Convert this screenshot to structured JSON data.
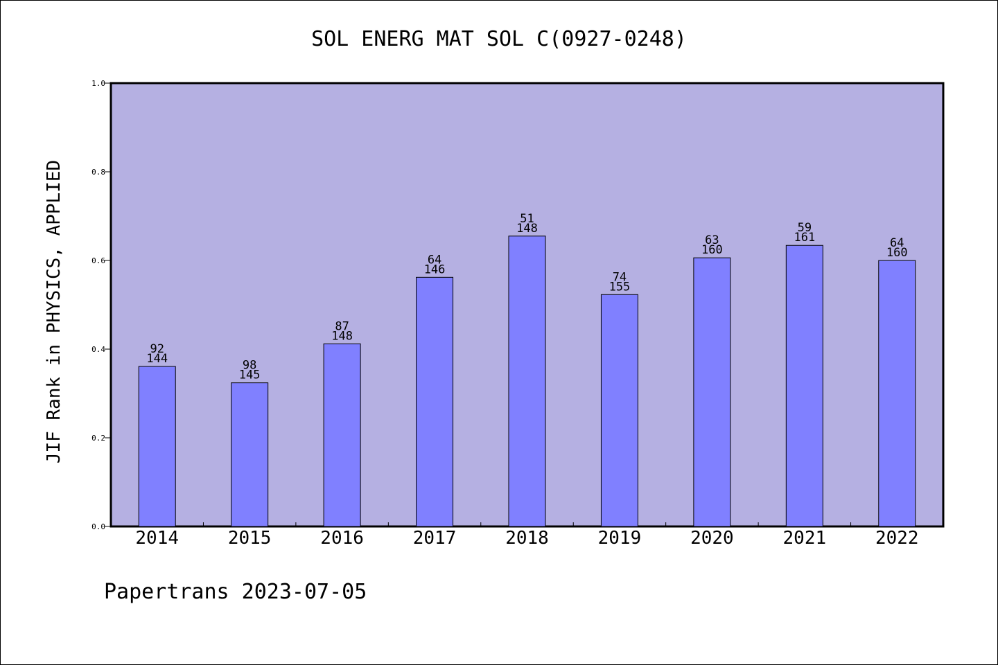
{
  "chart_data": {
    "type": "bar",
    "title": "SOL ENERG MAT SOL C(0927-0248)",
    "ylabel": "JIF Rank in PHYSICS, APPLIED",
    "xlabel": "",
    "ylim": [
      0,
      1.0
    ],
    "yticks": [
      "0.0",
      "0.2",
      "0.4",
      "0.6",
      "0.8",
      "1.0"
    ],
    "categories": [
      "2014",
      "2015",
      "2016",
      "2017",
      "2018",
      "2019",
      "2020",
      "2021",
      "2022"
    ],
    "values": [
      0.361,
      0.324,
      0.412,
      0.562,
      0.655,
      0.523,
      0.606,
      0.634,
      0.6
    ],
    "ranks": [
      "92",
      "98",
      "87",
      "64",
      "51",
      "74",
      "63",
      "59",
      "64"
    ],
    "totals": [
      "144",
      "145",
      "148",
      "146",
      "148",
      "155",
      "160",
      "161",
      "160"
    ],
    "colors": {
      "plot_background": "#b5b0e2",
      "bar_fill": "#8080ff",
      "axis": "#000000"
    }
  },
  "footer": "Papertrans 2023-07-05"
}
